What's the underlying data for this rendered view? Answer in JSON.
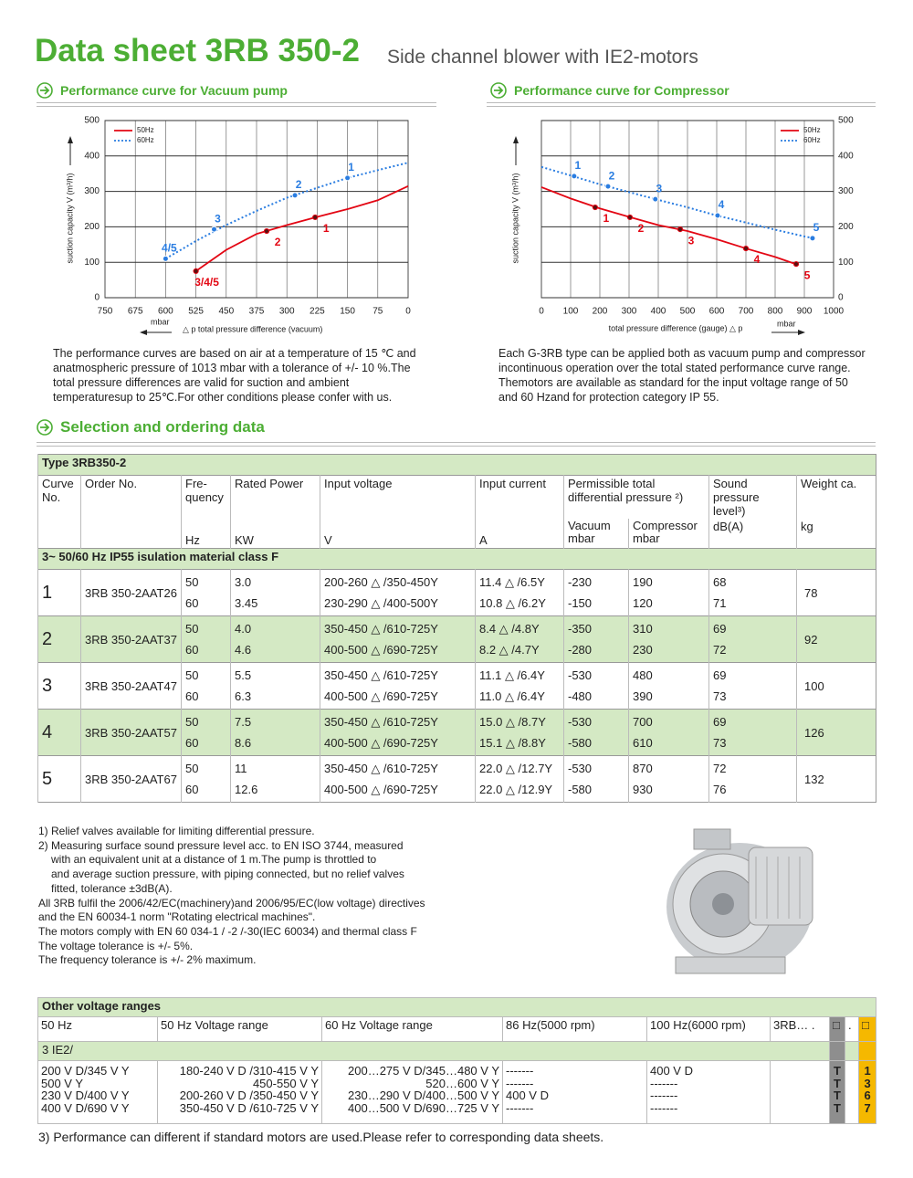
{
  "header": {
    "title": "Data sheet 3RB 350-2",
    "subtitle": "Side channel blower with IE2-motors"
  },
  "chart_data": [
    {
      "type": "line",
      "title": "Performance curve for Vacuum pump",
      "y_label": "suction capacity V (m³/h)",
      "x_label": "△ p total pressure difference (vacuum)",
      "x_unit": "mbar",
      "xlim": [
        750,
        0
      ],
      "ylim": [
        0,
        500
      ],
      "xticks": [
        750,
        675,
        600,
        525,
        450,
        375,
        300,
        225,
        150,
        75,
        0
      ],
      "yticks": [
        0,
        100,
        200,
        300,
        400,
        500
      ],
      "grid": true,
      "legend": "upper left",
      "y_axis": "left",
      "series": [
        {
          "name": "50Hz",
          "color": "#e30613",
          "dash": "solid",
          "x": [
            525,
            450,
            375,
            300,
            225,
            150,
            75,
            0
          ],
          "values": [
            75,
            135,
            180,
            205,
            228,
            250,
            275,
            315
          ],
          "markers": {
            "x": [
              525,
              350,
              230
            ],
            "values": [
              75,
              188,
              227
            ],
            "labels": [
              "3/4/5",
              "2",
              "1"
            ]
          }
        },
        {
          "name": "60Hz",
          "color": "#2a7de1",
          "dash": "dotted",
          "x": [
            600,
            525,
            450,
            375,
            300,
            225,
            150,
            75,
            0
          ],
          "values": [
            110,
            160,
            205,
            245,
            282,
            310,
            338,
            360,
            381
          ],
          "markers": {
            "x": [
              600,
              480,
              280,
              150
            ],
            "values": [
              110,
              193,
              289,
              338
            ],
            "labels": [
              "4/5",
              "3",
              "2",
              "1"
            ]
          }
        }
      ]
    },
    {
      "type": "line",
      "title": "Performance curve for Compressor",
      "y_label": "suction capacity V (m³/h)",
      "x_label": "total pressure difference (gauge) △ p",
      "x_unit": "mbar",
      "xlim": [
        0,
        1000
      ],
      "ylim": [
        0,
        500
      ],
      "xticks": [
        0,
        100,
        200,
        300,
        400,
        500,
        600,
        700,
        800,
        900,
        1000
      ],
      "yticks": [
        0,
        100,
        200,
        300,
        400,
        500
      ],
      "grid": true,
      "legend": "upper right",
      "y_axis": "right",
      "series": [
        {
          "name": "50Hz",
          "color": "#e30613",
          "dash": "solid",
          "x": [
            0,
            100,
            200,
            300,
            400,
            500,
            600,
            700,
            800,
            870
          ],
          "values": [
            312,
            280,
            252,
            228,
            205,
            188,
            165,
            139,
            115,
            95
          ],
          "markers": {
            "x": [
              184,
              303,
              475,
              700,
              872
            ],
            "values": [
              255,
              227,
              193,
              139,
              95
            ],
            "labels": [
              "1",
              "2",
              "3",
              "4",
              "5"
            ]
          }
        },
        {
          "name": "60Hz",
          "color": "#2a7de1",
          "dash": "dotted",
          "x": [
            0,
            100,
            200,
            300,
            400,
            500,
            600,
            700,
            800,
            900,
            930
          ],
          "values": [
            369,
            345,
            320,
            298,
            276,
            255,
            232,
            212,
            192,
            173,
            168
          ],
          "markers": {
            "x": [
              112,
              228,
              390,
              603,
              928
            ],
            "values": [
              343,
              314,
              278,
              232,
              168
            ],
            "labels": [
              "1",
              "2",
              "3",
              "4",
              "5"
            ]
          }
        }
      ]
    }
  ],
  "notes_vacuum": [
    "The performance curves are based on air at a temperature of 15 ℃ and",
    "anatmospheric pressure of 1013 mbar with a tolerance of +/- 10 %.The",
    "total pressure differences are valid for suction and ambient",
    "temperaturesup to 25℃.For other conditions please confer with us."
  ],
  "notes_compressor": [
    "Each G-3RB type can be applied both as vacuum pump and compressor",
    "incontinuous operation over the total stated performance curve range.",
    "Themotors are available as standard for the input voltage range of 50",
    "and 60 Hzand for protection category IP 55."
  ],
  "selection_title": "Selection and ordering data",
  "table": {
    "title": "Type 3RB350-2",
    "headers": [
      "Curve No.",
      "Order No.",
      "Fre- quency",
      "Rated Power",
      "Input voltage",
      "Input current",
      "Permissible total differential pressure ²)",
      "Sound pressure level³)",
      "Weight ca."
    ],
    "subheaders": [
      "Vacuum mbar",
      "Compressor mbar"
    ],
    "units": [
      "Hz",
      "KW",
      "V",
      "A",
      "dB(A)",
      "kg"
    ],
    "group": "3~ 50/60 Hz IP55 isulation material class F",
    "rows": [
      {
        "curve": "1",
        "order": "3RB 350-2AAT26",
        "weight": "78",
        "lines": [
          [
            "50",
            "3.0",
            "200-260 △ /350-450Y",
            "11.4 △ /6.5Y",
            "-230",
            "190",
            "68"
          ],
          [
            "60",
            "3.45",
            "230-290 △ /400-500Y",
            "10.8 △ /6.2Y",
            "-150",
            "120",
            "71"
          ]
        ]
      },
      {
        "curve": "2",
        "order": "3RB 350-2AAT37",
        "weight": "92",
        "lines": [
          [
            "50",
            "4.0",
            "350-450 △ /610-725Y",
            "8.4 △ /4.8Y",
            "-350",
            "310",
            "69"
          ],
          [
            "60",
            "4.6",
            "400-500 △ /690-725Y",
            "8.2 △ /4.7Y",
            "-280",
            "230",
            "72"
          ]
        ]
      },
      {
        "curve": "3",
        "order": "3RB 350-2AAT47",
        "weight": "100",
        "lines": [
          [
            "50",
            "5.5",
            "350-450 △ /610-725Y",
            "11.1 △ /6.4Y",
            "-530",
            "480",
            "69"
          ],
          [
            "60",
            "6.3",
            "400-500 △ /690-725Y",
            "11.0 △ /6.4Y",
            "-480",
            "390",
            "73"
          ]
        ]
      },
      {
        "curve": "4",
        "order": "3RB 350-2AAT57",
        "weight": "126",
        "lines": [
          [
            "50",
            "7.5",
            "350-450 △ /610-725Y",
            "15.0 △ /8.7Y",
            "-530",
            "700",
            "69"
          ],
          [
            "60",
            "8.6",
            "400-500 △ /690-725Y",
            "15.1 △ /8.8Y",
            "-580",
            "610",
            "73"
          ]
        ]
      },
      {
        "curve": "5",
        "order": "3RB 350-2AAT67",
        "weight": "132",
        "lines": [
          [
            "50",
            "11",
            "350-450 △ /610-725Y",
            "22.0 △ /12.7Y",
            "-530",
            "870",
            "72"
          ],
          [
            "60",
            "12.6",
            "400-500 △ /690-725Y",
            "22.0 △ /12.9Y",
            "-580",
            "930",
            "76"
          ]
        ]
      }
    ]
  },
  "footnotes": [
    "1) Relief valves available for limiting differential pressure.",
    "2) Measuring surface sound pressure level acc. to EN ISO 3744, measured",
    "with an equivalent unit at a distance of 1 m.The pump is throttled to",
    "and average suction pressure, with piping connected, but no relief valves",
    "fitted, tolerance ±3dB(A).",
    "All 3RB fulfil the 2006/42/EC(machinery)and 2006/95/EC(low voltage) directives",
    "and the EN 60034-1 norm \"Rotating electrical machines\".",
    "The motors comply with EN 60 034-1 / -2 /-30(IEC 60034) and thermal class F",
    "The voltage tolerance is +/- 5%.",
    "The frequency tolerance is +/- 2% maximum."
  ],
  "voltage_table": {
    "title": "Other voltage ranges",
    "headers": [
      "50 Hz",
      "50 Hz Voltage range",
      "60 Hz Voltage range",
      "86 Hz(5000 rpm)",
      "100 Hz(6000 rpm)",
      "3RB… .",
      "□",
      ".",
      "□"
    ],
    "group": "3 IE2/",
    "columns": [
      [
        "200 V D/345 V Y",
        "500 V Y",
        "230 V D/400 V Y",
        "400 V D/690 V Y"
      ],
      [
        "180-240 V D /310-415 V Y",
        "450-550 V Y",
        "200-260 V D /350-450 V Y",
        "350-450 V D /610-725 V Y"
      ],
      [
        "200…275 V D/345…480 V Y",
        "520…600 V Y",
        "230…290 V D/400…500 V Y",
        "400…500 V D/690…725 V Y"
      ],
      [
        "-------",
        "-------",
        "400 V D",
        "-------"
      ],
      [
        "400 V D",
        "-------",
        "-------",
        "-------"
      ],
      [],
      [
        "T",
        "T",
        "T",
        "T"
      ],
      [],
      [
        "1",
        "3",
        "6",
        "7"
      ]
    ]
  },
  "footer": "3) Performance can different if standard motors are used.Please refer to corresponding data sheets."
}
